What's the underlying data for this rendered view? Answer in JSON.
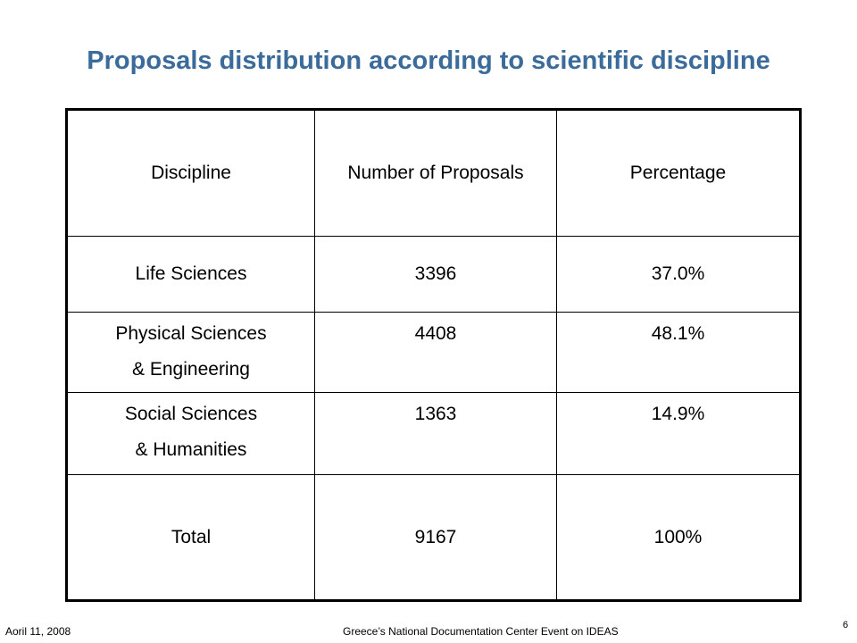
{
  "slide": {
    "title": "Proposals distribution according to scientific discipline"
  },
  "table": {
    "headers": [
      "Discipline",
      "Number of Proposals",
      "Percentage"
    ],
    "rows": [
      {
        "discipline": [
          "Life Sciences"
        ],
        "proposals": "3396",
        "percentage": "37.0%"
      },
      {
        "discipline": [
          "Physical Sciences",
          "& Engineering"
        ],
        "proposals": "4408",
        "percentage": "48.1%"
      },
      {
        "discipline": [
          "Social Sciences",
          "& Humanities"
        ],
        "proposals": "1363",
        "percentage": "14.9%"
      },
      {
        "discipline": [
          "Total"
        ],
        "proposals": "9167",
        "percentage": "100%"
      }
    ],
    "colors": {
      "discipline": "#1f2a9c",
      "percentage": "#e01b1b",
      "title": "#3a6b9a"
    }
  },
  "footer": {
    "date": "Aoril 11, 2008",
    "event": "Greece’s National Documentation Center Event on IDEAS",
    "page": "6"
  }
}
